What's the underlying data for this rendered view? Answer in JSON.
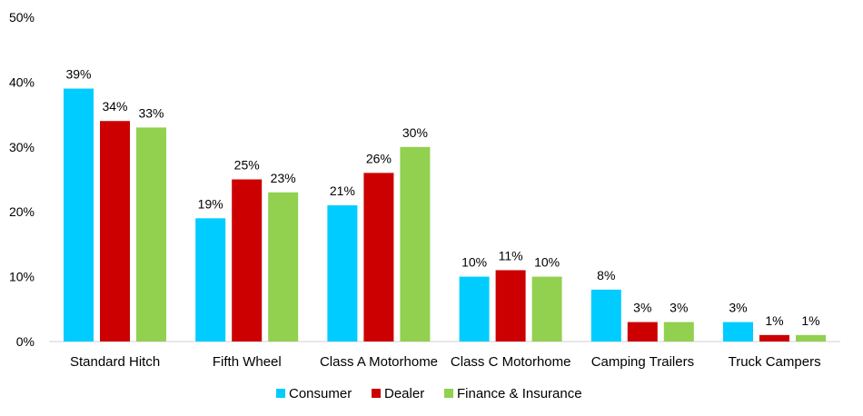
{
  "chart_data": {
    "type": "bar",
    "title": "",
    "xlabel": "",
    "ylabel": "",
    "ylim": [
      0,
      50
    ],
    "yticks": [
      "0%",
      "10%",
      "20%",
      "30%",
      "40%",
      "50%"
    ],
    "ytick_values": [
      0,
      10,
      20,
      30,
      40,
      50
    ],
    "grid": false,
    "legend_position": "bottom",
    "categories": [
      "Standard Hitch",
      "Fifth Wheel",
      "Class A Motorhome",
      "Class C Motorhome",
      "Camping Trailers",
      "Truck Campers"
    ],
    "series": [
      {
        "name": "Consumer",
        "color": "#00CCFF",
        "values": [
          39,
          19,
          21,
          10,
          8,
          3
        ],
        "labels": [
          "39%",
          "19%",
          "21%",
          "10%",
          "8%",
          "3%"
        ]
      },
      {
        "name": "Dealer",
        "color": "#CC0000",
        "values": [
          34,
          25,
          26,
          11,
          3,
          1
        ],
        "labels": [
          "34%",
          "25%",
          "26%",
          "11%",
          "3%",
          "1%"
        ]
      },
      {
        "name": "Finance & Insurance",
        "color": "#92D050",
        "values": [
          33,
          23,
          30,
          10,
          3,
          1
        ],
        "labels": [
          "33%",
          "23%",
          "30%",
          "10%",
          "3%",
          "1%"
        ]
      }
    ]
  }
}
